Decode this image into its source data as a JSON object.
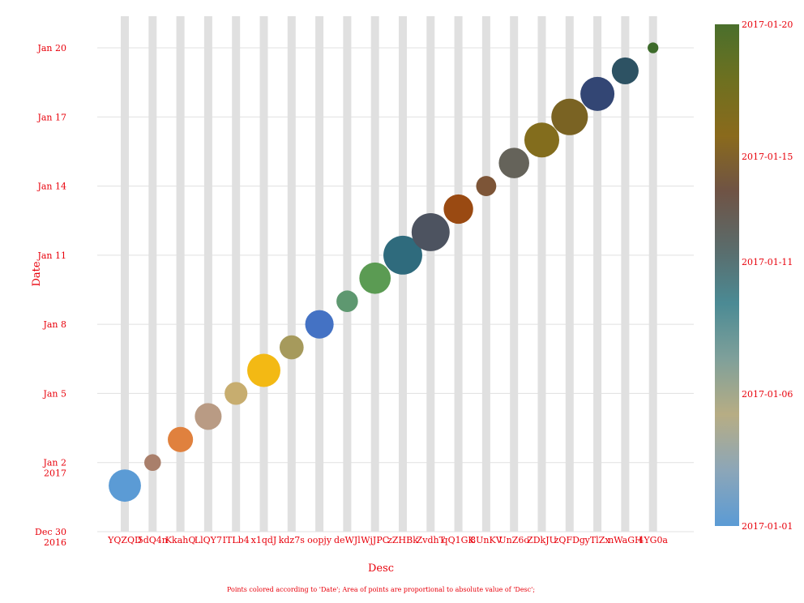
{
  "chart_data": {
    "type": "scatter",
    "title": "",
    "xlabel": "Desc",
    "ylabel": "Date",
    "caption": "Points colored according to 'Date'; Area of points are proportional to absolute value of 'Desc';",
    "categories": [
      "YQZQD",
      "5dQ4n",
      "KkahQ",
      "LlQY7",
      "ITLb4",
      "x1qdJ",
      "kdz7s",
      "oopjy",
      "deWJl",
      "WjJPC",
      "zZHBk",
      "ZvdhT",
      "qQ1GK",
      "8UnKV",
      "UnZ6o",
      "ZDkJU",
      "zQFDg",
      "yTlZx",
      "nWaGH",
      "4YG0a"
    ],
    "points": [
      {
        "x": "YQZQD",
        "y": "2017-01-01",
        "size": 0.9,
        "color": "#5b9bd5"
      },
      {
        "x": "5dQ4n",
        "y": "2017-01-02",
        "size": 0.24,
        "color": "#a97f6b"
      },
      {
        "x": "KkahQ",
        "y": "2017-01-03",
        "size": 0.55,
        "color": "#e0813e"
      },
      {
        "x": "LlQY7",
        "y": "2017-01-04",
        "size": 0.62,
        "color": "#b99b84"
      },
      {
        "x": "ITLb4",
        "y": "2017-01-05",
        "size": 0.45,
        "color": "#c7ad6f"
      },
      {
        "x": "x1qdJ",
        "y": "2017-01-06",
        "size": 0.95,
        "color": "#f3b914"
      },
      {
        "x": "kdz7s",
        "y": "2017-01-07",
        "size": 0.5,
        "color": "#a69a5c"
      },
      {
        "x": "oopjy",
        "y": "2017-01-08",
        "size": 0.7,
        "color": "#4472c4"
      },
      {
        "x": "deWJl",
        "y": "2017-01-09",
        "size": 0.4,
        "color": "#5e9870"
      },
      {
        "x": "WjJPC",
        "y": "2017-01-10",
        "size": 0.85,
        "color": "#5b9b53"
      },
      {
        "x": "zZHBk",
        "y": "2017-01-11",
        "size": 1.3,
        "color": "#2f6b7d"
      },
      {
        "x": "ZvdhT",
        "y": "2017-01-12",
        "size": 1.25,
        "color": "#4d5360"
      },
      {
        "x": "qQ1GK",
        "y": "2017-01-13",
        "size": 0.75,
        "color": "#9a4a12"
      },
      {
        "x": "8UnKV",
        "y": "2017-01-14",
        "size": 0.35,
        "color": "#7d5537"
      },
      {
        "x": "UnZ6o",
        "y": "2017-01-15",
        "size": 0.8,
        "color": "#65635a"
      },
      {
        "x": "ZDkJU",
        "y": "2017-01-16",
        "size": 1.05,
        "color": "#836d1d"
      },
      {
        "x": "zQFDg",
        "y": "2017-01-17",
        "size": 1.15,
        "color": "#7a6323"
      },
      {
        "x": "yTlZx",
        "y": "2017-01-18",
        "size": 1.0,
        "color": "#334674"
      },
      {
        "x": "nWaGH",
        "y": "2017-01-19",
        "size": 0.62,
        "color": "#2d5263"
      },
      {
        "x": "4YG0a",
        "y": "2017-01-20",
        "size": 0.1,
        "color": "#3d6b2a"
      }
    ],
    "y_axis": {
      "ylim": [
        "2016-12-30",
        "2017-01-20 8:00"
      ],
      "ticks": [
        {
          "value": "2016-12-30",
          "line1": "Dec 30",
          "line2": "2016"
        },
        {
          "value": "2017-01-02",
          "line1": "Jan 2",
          "line2": "2017"
        },
        {
          "value": "2017-01-05",
          "line1": "Jan 5",
          "line2": ""
        },
        {
          "value": "2017-01-08",
          "line1": "Jan 8",
          "line2": ""
        },
        {
          "value": "2017-01-11",
          "line1": "Jan 11",
          "line2": ""
        },
        {
          "value": "2017-01-14",
          "line1": "Jan 14",
          "line2": ""
        },
        {
          "value": "2017-01-17",
          "line1": "Jan 17",
          "line2": ""
        },
        {
          "value": "2017-01-20",
          "line1": "Jan 20",
          "line2": ""
        }
      ],
      "grid": true
    },
    "x_axis": {
      "grid": true,
      "grid_style": "vertical bands"
    },
    "colorbar": {
      "range": [
        "2017-01-01",
        "2017-01-20"
      ],
      "ticks": [
        {
          "value": "2017-01-01",
          "label": "2017-01-01"
        },
        {
          "value": "2017-01-06",
          "label": "2017-01-06"
        },
        {
          "value": "2017-01-11",
          "label": "2017-01-11"
        },
        {
          "value": "2017-01-15",
          "label": "2017-01-15"
        },
        {
          "value": "2017-01-20",
          "label": "2017-01-20"
        }
      ],
      "gradient": [
        "#5b9bd5",
        "#8ca6b8",
        "#b7ad84",
        "#7fa09a",
        "#4b8a94",
        "#5b6b6a",
        "#6f5345",
        "#8a6a1c",
        "#6e7020",
        "#4a6f2c"
      ]
    },
    "legend": "none",
    "text_color": "#e8000b",
    "grid_color": "#e0e0e0"
  }
}
